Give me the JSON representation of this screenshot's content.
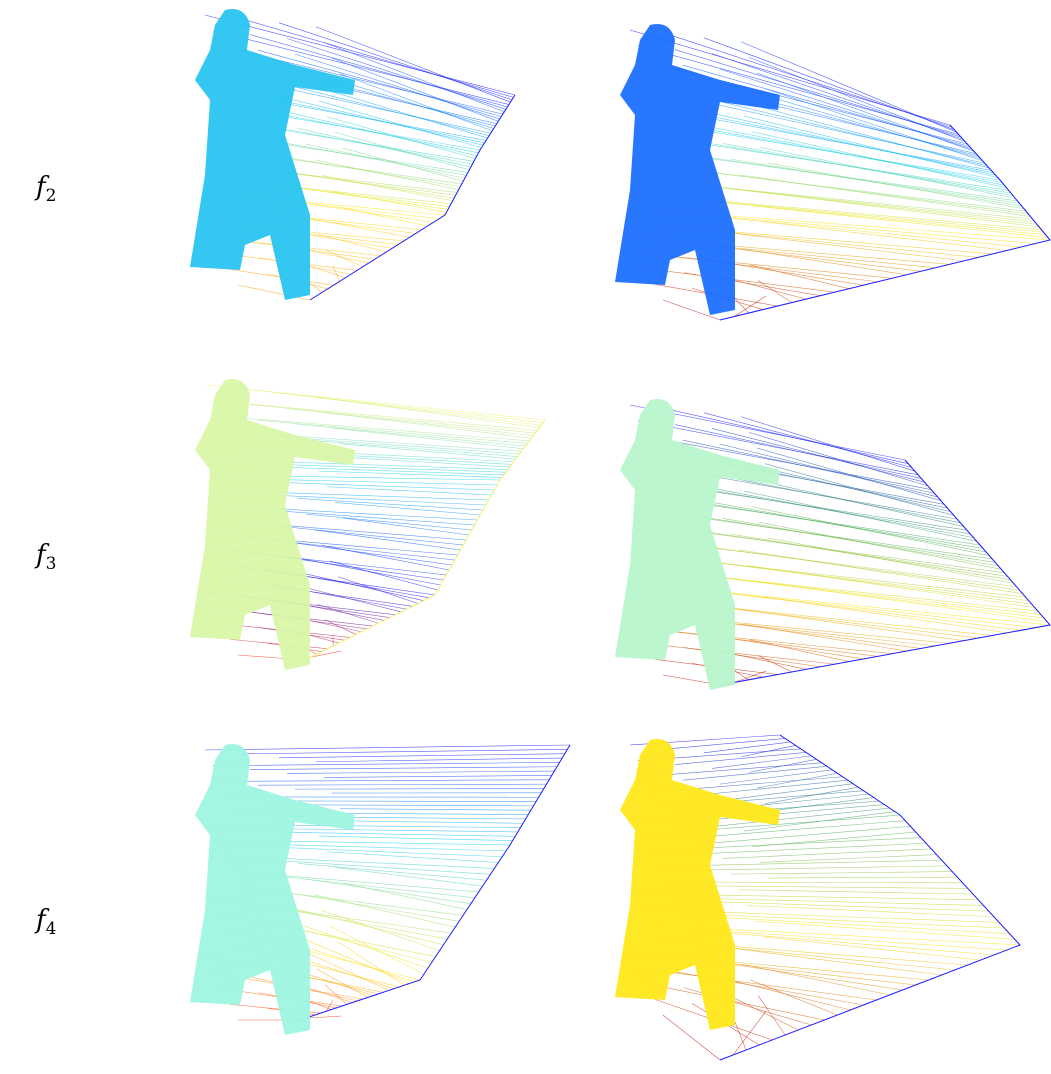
{
  "rows": [
    {
      "symbol": "f",
      "index": "2"
    },
    {
      "symbol": "f",
      "index": "3"
    },
    {
      "symbol": "f",
      "index": "4"
    }
  ],
  "colormap": [
    "#1a1aff",
    "#1e6fff",
    "#22d3f5",
    "#9ef5c0",
    "#f2f26a",
    "#ffe81a",
    "#ff9a1a",
    "#ff3a1a",
    "#c41515"
  ],
  "panels": [
    {
      "row": 0,
      "col": 0,
      "body_color": "#28c4f0",
      "fan_colors": [
        "#1a1aff",
        "#22d3f5",
        "#ffe81a",
        "#ff9a1a"
      ]
    },
    {
      "row": 0,
      "col": 1,
      "body_color": "#1e6fff",
      "fan_colors": [
        "#1a1aff",
        "#22d3f5",
        "#ffe81a",
        "#c41515"
      ]
    },
    {
      "row": 1,
      "col": 0,
      "body_color": "#d8f7a8",
      "fan_colors": [
        "#f2f26a",
        "#22d3f5",
        "#1a1aff",
        "#ff3a1a"
      ]
    },
    {
      "row": 1,
      "col": 1,
      "body_color": "#b8f5cc",
      "fan_colors": [
        "#1a1aff",
        "#4bb06b",
        "#ffe81a",
        "#c41515"
      ]
    },
    {
      "row": 2,
      "col": 0,
      "body_color": "#9ef5e0",
      "fan_colors": [
        "#1a1aff",
        "#22d3f5",
        "#ffe81a",
        "#ff3a1a"
      ]
    },
    {
      "row": 2,
      "col": 1,
      "body_color": "#ffe81a",
      "fan_colors": [
        "#1a1aff",
        "#4bb06b",
        "#ffe81a",
        "#c41515"
      ]
    }
  ]
}
